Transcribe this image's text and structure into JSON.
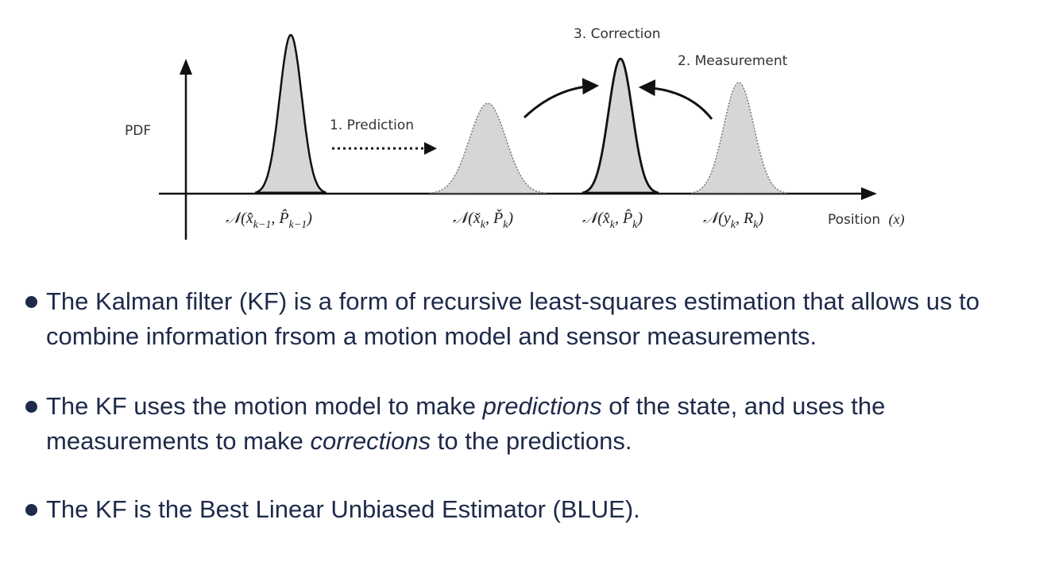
{
  "diagram": {
    "y_axis_label": "PDF",
    "x_axis_label": "Position",
    "x_axis_symbol": "(x)",
    "step_prediction": "1. Prediction",
    "step_measurement": "2. Measurement",
    "step_correction": "3. Correction",
    "dist_prior": {
      "N": "𝒩",
      "open": "(",
      "x": "x̂",
      "x_sub": "k−1",
      "comma": ", ",
      "P": "P̂",
      "P_sub": "k−1",
      "close": ")"
    },
    "dist_predicted": {
      "N": "𝒩",
      "open": "(",
      "x": "x̌",
      "x_sub": "k",
      "comma": ", ",
      "P": "P̌",
      "P_sub": "k",
      "close": ")"
    },
    "dist_corrected": {
      "N": "𝒩",
      "open": "(",
      "x": "x̂",
      "x_sub": "k",
      "comma": ", ",
      "P": "P̂",
      "P_sub": "k",
      "close": ")"
    },
    "dist_measurement": {
      "N": "𝒩",
      "open": "(",
      "x": "y",
      "x_sub": "k",
      "comma": ", ",
      "P": "R",
      "P_sub": "k",
      "close": ")"
    }
  },
  "bullets": {
    "b1": "The Kalman filter (KF) is a form of recursive least-squares estimation that allows us to combine information frsom a motion model and sensor measurements.",
    "b2_part1": "The KF uses the motion model to make ",
    "b2_em1": "predictions",
    "b2_part2": " of the state, and uses the measurements to make ",
    "b2_em2": "corrections",
    "b2_part3": " to the predictions.",
    "b3": "The KF is the Best Linear Unbiased Estimator (BLUE)."
  },
  "colors": {
    "curve_fill": "#d6d6d6",
    "curve_stroke": "#111111",
    "text_dark": "#1e2a4a"
  }
}
